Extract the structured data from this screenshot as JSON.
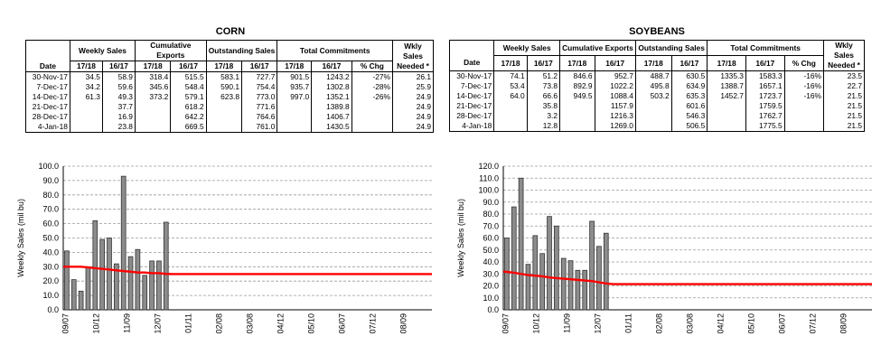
{
  "corn": {
    "title": "CORN",
    "headers": {
      "weekly": "Weekly Sales",
      "cumulative": "Cumulative Exports",
      "outstanding": "Outstanding Sales",
      "total": "Total Commitments",
      "wkly": "Wkly Sales Needed *",
      "date": "Date",
      "y1": "17/18",
      "y2": "16/17",
      "pct": "% Chg"
    },
    "rows": [
      [
        "30-Nov-17",
        "34.5",
        "58.9",
        "318.4",
        "515.5",
        "583.1",
        "727.7",
        "901.5",
        "1243.2",
        "-27%",
        "26.1"
      ],
      [
        "7-Dec-17",
        "34.2",
        "59.6",
        "345.6",
        "548.4",
        "590.1",
        "754.4",
        "935.7",
        "1302.8",
        "-28%",
        "25.9"
      ],
      [
        "14-Dec-17",
        "61.3",
        "49.3",
        "373.2",
        "579.1",
        "623.8",
        "773.0",
        "997.0",
        "1352.1",
        "-26%",
        "24.9"
      ],
      [
        "21-Dec-17",
        "",
        "37.7",
        "",
        "618.2",
        "",
        "771.6",
        "",
        "1389.8",
        "",
        "24.9"
      ],
      [
        "28-Dec-17",
        "",
        "16.9",
        "",
        "642.2",
        "",
        "764.6",
        "",
        "1406.7",
        "",
        "24.9"
      ],
      [
        "4-Jan-18",
        "",
        "23.8",
        "",
        "669.5",
        "",
        "761.0",
        "",
        "1430.5",
        "",
        "24.9"
      ]
    ]
  },
  "soybeans": {
    "title": "SOYBEANS",
    "headers": {
      "weekly": "Weekly Sales",
      "cumulative": "Cumulative Exports",
      "outstanding": "Outstanding Sales",
      "total": "Total Commitments",
      "wkly": "Wkly Sales Needed *",
      "date": "Date",
      "y1": "17/18",
      "y2": "16/17",
      "pct": "% Chg"
    },
    "rows": [
      [
        "30-Nov-17",
        "74.1",
        "51.2",
        "846.6",
        "952.7",
        "488.7",
        "630.5",
        "1335.3",
        "1583.3",
        "-16%",
        "23.5"
      ],
      [
        "7-Dec-17",
        "53.4",
        "73.8",
        "892.9",
        "1022.2",
        "495.8",
        "634.9",
        "1388.7",
        "1657.1",
        "-16%",
        "22.7"
      ],
      [
        "14-Dec-17",
        "64.0",
        "66.6",
        "949.5",
        "1088.4",
        "503.2",
        "635.3",
        "1452.7",
        "1723.7",
        "-16%",
        "21.5"
      ],
      [
        "21-Dec-17",
        "",
        "35.8",
        "",
        "1157.9",
        "",
        "601.6",
        "",
        "1759.5",
        "",
        "21.5"
      ],
      [
        "28-Dec-17",
        "",
        "3.2",
        "",
        "1216.3",
        "",
        "546.3",
        "",
        "1762.7",
        "",
        "21.5"
      ],
      [
        "4-Jan-18",
        "",
        "12.8",
        "",
        "1269.0",
        "",
        "506.5",
        "",
        "1775.5",
        "",
        "21.5"
      ]
    ]
  },
  "chart_data": [
    {
      "type": "bar",
      "name": "corn-chart",
      "ylabel": "Weekly Sales (mil bu)",
      "ylim": [
        0,
        100
      ],
      "ytick_step": 10,
      "grid": true,
      "xticks": [
        "09/07",
        "10/12",
        "11/09",
        "12/07",
        "01/11",
        "02/08",
        "03/08",
        "04/12",
        "05/10",
        "06/07",
        "07/12",
        "08/09"
      ],
      "n_weeks": 52,
      "bars": [
        41,
        21,
        13,
        30,
        62,
        49,
        50,
        32,
        93,
        37,
        42,
        24,
        34,
        34,
        61
      ],
      "line": [
        30,
        30,
        30,
        29.5,
        29,
        28.5,
        28,
        27.5,
        27,
        26.5,
        26,
        26,
        25.5,
        25.5,
        25,
        24.9,
        24.9,
        24.9,
        24.9,
        24.9,
        24.9,
        24.9,
        24.9,
        24.9,
        24.9,
        24.9,
        24.9,
        24.9,
        24.9,
        24.9,
        24.9,
        24.9,
        24.9,
        24.9,
        24.9,
        24.9,
        24.9,
        24.9,
        24.9,
        24.9,
        24.9,
        24.9,
        24.9,
        24.9,
        24.9,
        24.9,
        24.9,
        24.9,
        24.9,
        24.9,
        24.9,
        24.9
      ],
      "bar_color": "#8c8c8c",
      "line_color": "#ff0000"
    },
    {
      "type": "bar",
      "name": "soybean-chart",
      "ylabel": "Weekly Sales (mil bu)",
      "ylim": [
        0,
        120
      ],
      "ytick_step": 10,
      "grid": true,
      "xticks": [
        "09/07",
        "10/12",
        "11/09",
        "12/07",
        "01/11",
        "02/08",
        "03/08",
        "04/12",
        "05/10",
        "06/07",
        "07/12",
        "08/09"
      ],
      "n_weeks": 52,
      "bars": [
        60,
        86,
        110,
        38,
        62,
        47,
        78,
        70,
        43,
        41,
        33,
        33,
        74,
        53,
        64
      ],
      "line": [
        32,
        31,
        30,
        29,
        28.5,
        28,
        27,
        26.5,
        26,
        25.5,
        25,
        24.5,
        24,
        23,
        22,
        21.5,
        21.5,
        21.5,
        21.5,
        21.5,
        21.5,
        21.5,
        21.5,
        21.5,
        21.5,
        21.5,
        21.5,
        21.5,
        21.5,
        21.5,
        21.5,
        21.5,
        21.5,
        21.5,
        21.5,
        21.5,
        21.5,
        21.5,
        21.5,
        21.5,
        21.5,
        21.5,
        21.5,
        21.5,
        21.5,
        21.5,
        21.5,
        21.5,
        21.5,
        21.5,
        21.5,
        21.5
      ],
      "bar_color": "#8c8c8c",
      "line_color": "#ff0000"
    }
  ]
}
